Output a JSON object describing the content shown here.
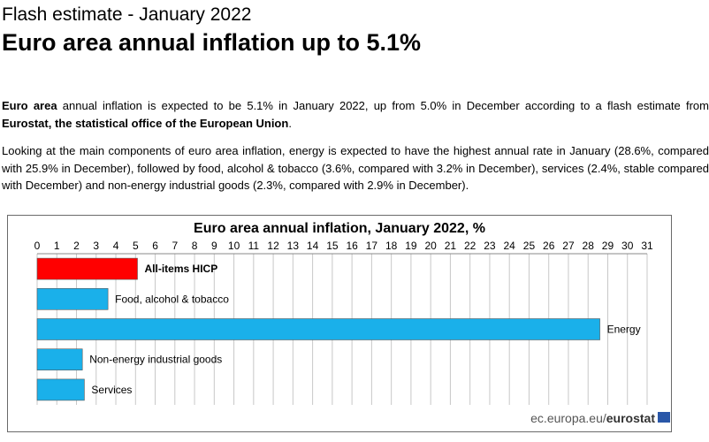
{
  "header": {
    "kicker": "Flash estimate - January 2022",
    "headline": "Euro area annual inflation up to 5.1%"
  },
  "intro": {
    "p1_bold_lead": "Euro area",
    "p1_text": " annual inflation is expected to be 5.1% in January 2022, up from 5.0% in December according to a flash estimate from ",
    "p1_bold_source": "Eurostat, the statistical office of the European Union",
    "p1_end": ".",
    "p2": "Looking at the main components of euro area inflation, energy is expected to have the highest annual rate in January (28.6%, compared with 25.9% in December), followed by food, alcohol & tobacco (3.6%, compared with 3.2% in December), services (2.4%, stable compared with December) and non-energy industrial goods (2.3%, compared with 2.9% in December)."
  },
  "chart_data": {
    "type": "bar",
    "orientation": "horizontal",
    "title": "Euro area annual inflation, January 2022, %",
    "categories": [
      "All-items HICP",
      "Food, alcohol & tobacco",
      "Energy",
      "Non-energy industrial goods",
      "Services"
    ],
    "values": [
      5.1,
      3.6,
      28.6,
      2.3,
      2.4
    ],
    "colors": [
      "#ff0000",
      "#1ab0ea",
      "#1ab0ea",
      "#1ab0ea",
      "#1ab0ea"
    ],
    "bold_category": "All-items HICP",
    "xlim": [
      0,
      31
    ],
    "xticks": [
      0,
      1,
      2,
      3,
      4,
      5,
      6,
      7,
      8,
      9,
      10,
      11,
      12,
      13,
      14,
      15,
      16,
      17,
      18,
      19,
      20,
      21,
      22,
      23,
      24,
      25,
      26,
      27,
      28,
      29,
      30,
      31
    ],
    "x_axis_position": "top",
    "grid": true,
    "legend": "none"
  },
  "footer": {
    "source_prefix": "ec.europa.eu/",
    "source_brand": "eurostat"
  },
  "colors": {
    "highlight_bar": "#ff0000",
    "component_bar": "#1ab0ea",
    "grid": "#c8c8c8"
  }
}
